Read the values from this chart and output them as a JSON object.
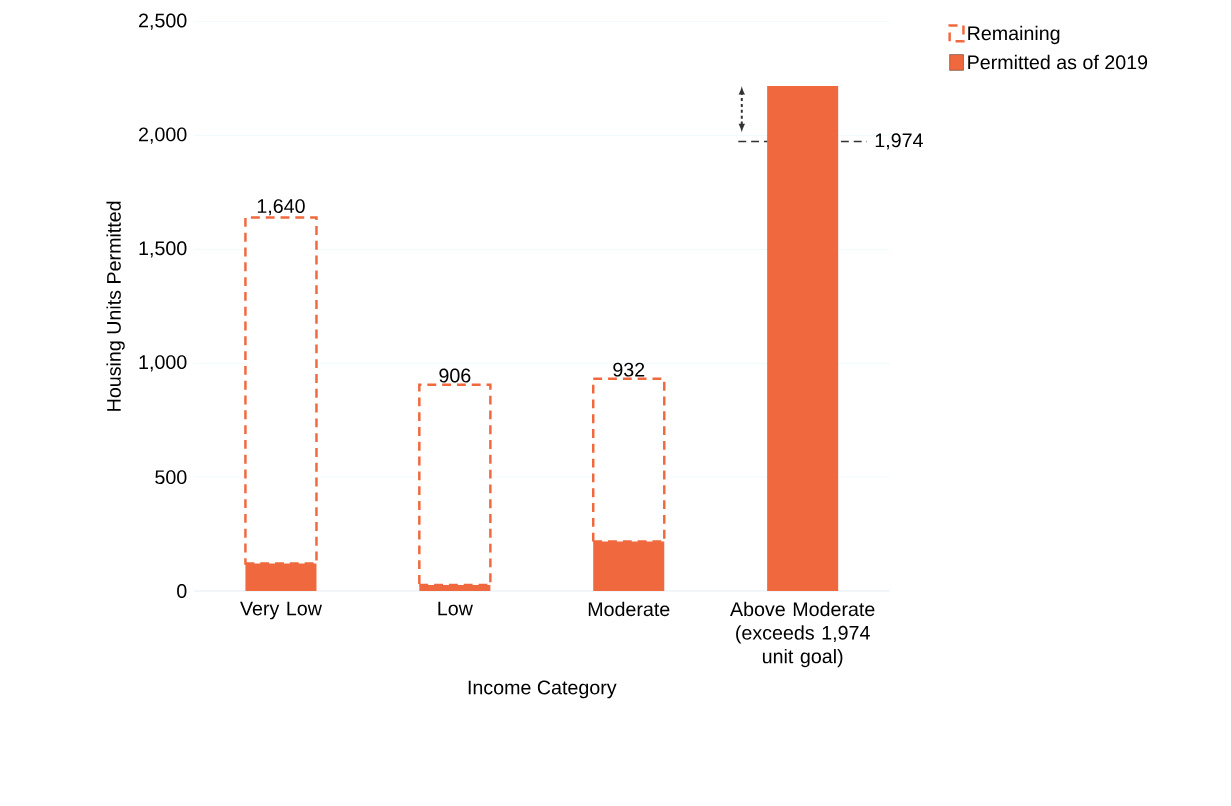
{
  "chart_data": {
    "type": "bar",
    "stacked": true,
    "xlabel": "Income Category",
    "ylabel": "Housing Units Permitted",
    "categories": [
      "Very Low",
      "Low",
      "Moderate",
      "Above Moderate (exceeds 1,974 unit goal)"
    ],
    "series": [
      {
        "name": "Permitted as of 2019",
        "color": "#f0693e",
        "values": [
          121,
          26,
          217,
          2218
        ]
      },
      {
        "name": "Remaining",
        "color": "#f0693e",
        "line_style": "dashed",
        "values": [
          1519,
          880,
          715,
          null
        ]
      }
    ],
    "totals": [
      "1,640",
      "906",
      "932",
      null
    ],
    "ylim": [
      0,
      2500
    ],
    "yticks": [
      0,
      500,
      {
        "value": 1000,
        "label": "1,000"
      },
      {
        "value": 1500,
        "label": "1,500"
      },
      {
        "value": 2000,
        "label": "2,000"
      },
      {
        "value": 2500,
        "label": "2,500"
      }
    ],
    "grid": "y",
    "legend": "top right",
    "ref_lines": [
      {
        "axis": "y",
        "value": 1974,
        "label": "1,974",
        "color": "#333333",
        "line_style": "dashed"
      }
    ]
  }
}
